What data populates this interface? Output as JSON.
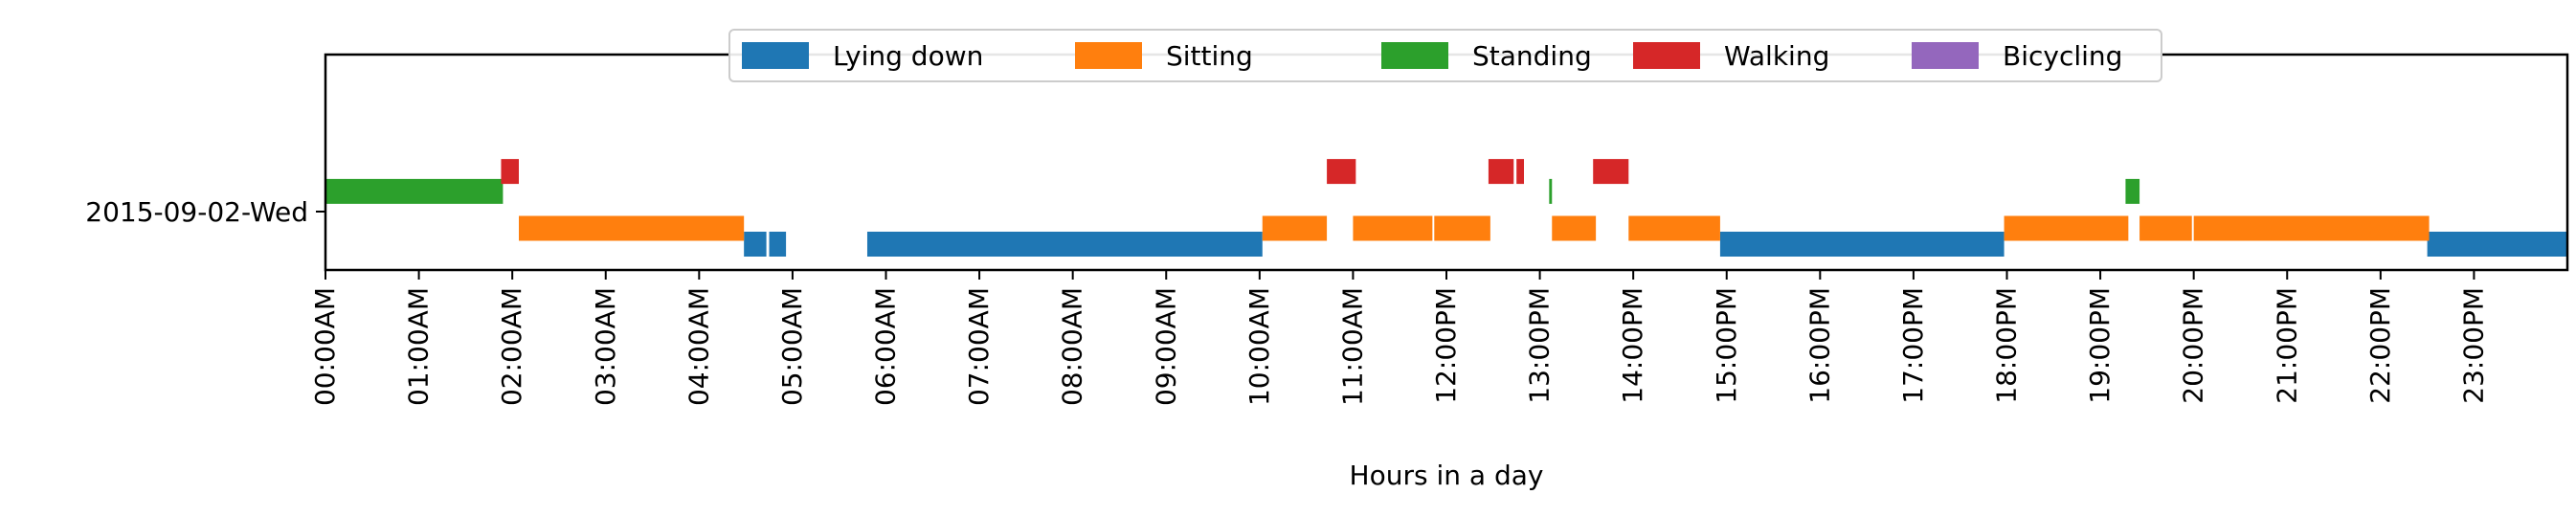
{
  "chart_data": {
    "type": "timeline",
    "title": "",
    "xlabel": "Hours in a day",
    "ylabel": "",
    "xlim": [
      0,
      24
    ],
    "categories": [
      "2015-09-02-Wed"
    ],
    "x_tick_labels": [
      "00:00AM",
      "01:00AM",
      "02:00AM",
      "03:00AM",
      "04:00AM",
      "05:00AM",
      "06:00AM",
      "07:00AM",
      "08:00AM",
      "09:00AM",
      "10:00AM",
      "11:00AM",
      "12:00PM",
      "13:00PM",
      "14:00PM",
      "15:00PM",
      "16:00PM",
      "17:00PM",
      "18:00PM",
      "19:00PM",
      "20:00PM",
      "21:00PM",
      "22:00PM",
      "23:00PM"
    ],
    "legend_position": "top-center",
    "grid": false,
    "series": [
      {
        "name": "Lying down",
        "color": "#1f77b4",
        "segments": [
          [
            4.48,
            4.72
          ],
          [
            4.75,
            4.93
          ],
          [
            5.8,
            10.03
          ],
          [
            14.93,
            17.97
          ],
          [
            22.5,
            24.0
          ]
        ]
      },
      {
        "name": "Sitting",
        "color": "#ff7f0e",
        "segments": [
          [
            2.07,
            4.48
          ],
          [
            10.03,
            10.72
          ],
          [
            11.0,
            11.85
          ],
          [
            11.87,
            12.47
          ],
          [
            13.13,
            13.6
          ],
          [
            13.95,
            14.93
          ],
          [
            17.97,
            19.3
          ],
          [
            19.42,
            19.98
          ],
          [
            20.0,
            22.52
          ]
        ]
      },
      {
        "name": "Standing",
        "color": "#2ca02c",
        "segments": [
          [
            0.0,
            1.9
          ],
          [
            13.1,
            13.13
          ],
          [
            19.27,
            19.42
          ]
        ]
      },
      {
        "name": "Walking",
        "color": "#d62728",
        "segments": [
          [
            1.88,
            2.07
          ],
          [
            10.72,
            11.03
          ],
          [
            12.45,
            12.72
          ],
          [
            12.75,
            12.83
          ],
          [
            13.57,
            13.95
          ]
        ]
      },
      {
        "name": "Bicycling",
        "color": "#9467bd",
        "segments": []
      }
    ]
  }
}
